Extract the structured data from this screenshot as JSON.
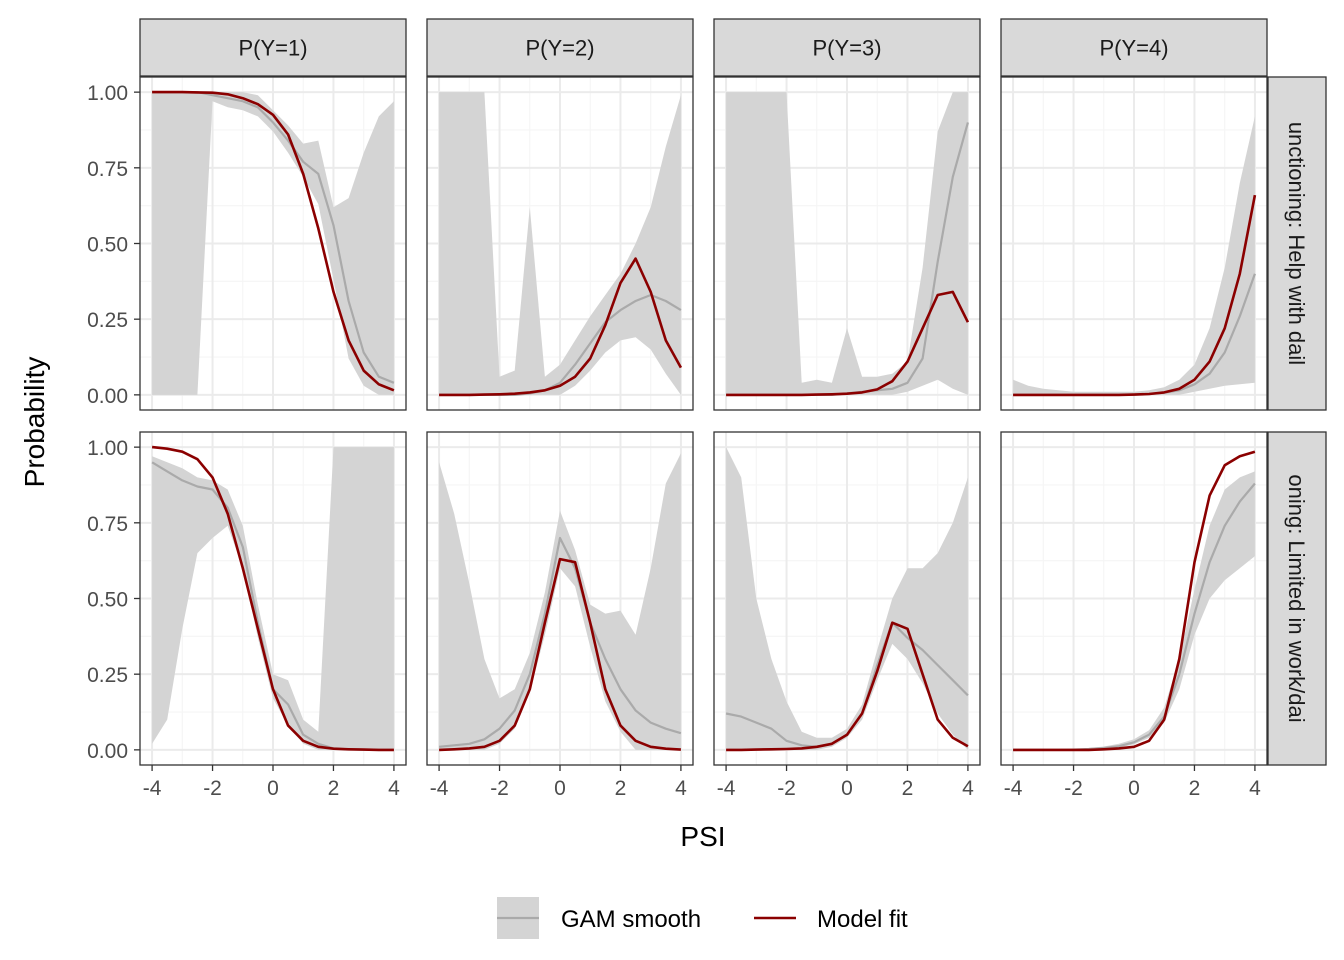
{
  "chart_data": {
    "type": "line",
    "xlabel": "PSI",
    "ylabel": "Probability",
    "xlim": [
      -4.4,
      4.4
    ],
    "ylim": [
      -0.05,
      1.05
    ],
    "x_ticks": [
      -4,
      -2,
      0,
      2,
      4
    ],
    "x_tick_labels": [
      "-4",
      "-2",
      "0",
      "2",
      "4"
    ],
    "y_ticks": [
      0,
      0.25,
      0.5,
      0.75,
      1
    ],
    "y_tick_labels": [
      "0.00",
      "0.25",
      "0.50",
      "0.75",
      "1.00"
    ],
    "grid": true,
    "facet_cols": [
      "P(Y=1)",
      "P(Y=2)",
      "P(Y=3)",
      "P(Y=4)"
    ],
    "facet_rows": [
      "unctioning: Help with dail",
      "oning: Limited in work/dai"
    ],
    "legend": {
      "position": "bottom",
      "entries": [
        {
          "label": "GAM smooth",
          "kind": "band-line",
          "color": "#aaaaaa",
          "fill": "#d4d4d4"
        },
        {
          "label": "Model fit",
          "kind": "line",
          "color": "#8b0000"
        }
      ]
    },
    "x": [
      -4,
      -3.5,
      -3,
      -2.5,
      -2,
      -1.5,
      -1,
      -0.5,
      0,
      0.5,
      1,
      1.5,
      2,
      2.5,
      3,
      3.5,
      4
    ],
    "panels": [
      {
        "row": 0,
        "col": 0,
        "model": [
          1.0,
          1.0,
          1.0,
          0.999,
          0.998,
          0.993,
          0.98,
          0.96,
          0.925,
          0.86,
          0.73,
          0.55,
          0.34,
          0.18,
          0.08,
          0.035,
          0.015
        ],
        "gam": [
          1.0,
          1.0,
          1.0,
          1.0,
          0.99,
          0.98,
          0.97,
          0.95,
          0.9,
          0.84,
          0.77,
          0.73,
          0.56,
          0.31,
          0.14,
          0.06,
          0.04
        ],
        "lower": [
          0.0,
          0.0,
          0.0,
          0.0,
          0.97,
          0.95,
          0.94,
          0.92,
          0.87,
          0.8,
          0.72,
          0.63,
          0.38,
          0.12,
          0.03,
          0.0,
          0.0
        ],
        "upper": [
          1.0,
          1.0,
          1.0,
          1.0,
          1.0,
          1.0,
          1.0,
          0.99,
          0.94,
          0.89,
          0.83,
          0.84,
          0.62,
          0.65,
          0.8,
          0.92,
          0.97
        ]
      },
      {
        "row": 0,
        "col": 1,
        "model": [
          0.0,
          0.0,
          0.0,
          0.001,
          0.002,
          0.004,
          0.008,
          0.015,
          0.03,
          0.06,
          0.12,
          0.23,
          0.37,
          0.45,
          0.34,
          0.18,
          0.09
        ],
        "gam": [
          0.0,
          0.0,
          0.0,
          0.0,
          0.0,
          0.0,
          0.005,
          0.015,
          0.04,
          0.1,
          0.17,
          0.24,
          0.28,
          0.31,
          0.33,
          0.31,
          0.28
        ],
        "lower": [
          0.0,
          0.0,
          0.0,
          0.0,
          0.0,
          0.0,
          0.0,
          0.0,
          0.0,
          0.03,
          0.08,
          0.14,
          0.18,
          0.19,
          0.15,
          0.07,
          0.0
        ],
        "upper": [
          1.0,
          1.0,
          1.0,
          1.0,
          0.06,
          0.08,
          0.62,
          0.06,
          0.1,
          0.18,
          0.26,
          0.33,
          0.4,
          0.5,
          0.62,
          0.82,
          0.99
        ]
      },
      {
        "row": 0,
        "col": 2,
        "model": [
          0.0,
          0.0,
          0.0,
          0.0,
          0.0,
          0.0,
          0.001,
          0.002,
          0.004,
          0.008,
          0.018,
          0.045,
          0.11,
          0.22,
          0.33,
          0.34,
          0.24
        ],
        "gam": [
          0.0,
          0.0,
          0.0,
          0.0,
          0.0,
          0.0,
          0.0,
          0.0,
          0.005,
          0.01,
          0.015,
          0.02,
          0.04,
          0.12,
          0.44,
          0.72,
          0.9
        ],
        "lower": [
          0.0,
          0.0,
          0.0,
          0.0,
          0.0,
          0.0,
          0.0,
          0.0,
          0.0,
          0.0,
          0.0,
          0.0,
          0.01,
          0.03,
          0.05,
          0.02,
          0.0
        ],
        "upper": [
          1.0,
          1.0,
          1.0,
          1.0,
          1.0,
          0.04,
          0.05,
          0.04,
          0.22,
          0.06,
          0.06,
          0.07,
          0.11,
          0.42,
          0.87,
          1.0,
          1.0
        ]
      },
      {
        "row": 0,
        "col": 3,
        "model": [
          0.0,
          0.0,
          0.0,
          0.0,
          0.0,
          0.0,
          0.0,
          0.0,
          0.001,
          0.003,
          0.008,
          0.02,
          0.05,
          0.11,
          0.22,
          0.4,
          0.66
        ],
        "gam": [
          0.0,
          0.0,
          0.0,
          0.0,
          0.0,
          0.0,
          0.0,
          0.0,
          0.001,
          0.003,
          0.007,
          0.015,
          0.035,
          0.07,
          0.14,
          0.26,
          0.4
        ],
        "lower": [
          0.0,
          0.0,
          0.0,
          0.0,
          0.0,
          0.0,
          0.0,
          0.0,
          0.0,
          0.0,
          0.0,
          0.0,
          0.01,
          0.02,
          0.03,
          0.035,
          0.04
        ],
        "upper": [
          0.05,
          0.03,
          0.02,
          0.015,
          0.01,
          0.01,
          0.01,
          0.01,
          0.01,
          0.015,
          0.025,
          0.05,
          0.1,
          0.22,
          0.42,
          0.7,
          0.92
        ]
      },
      {
        "row": 1,
        "col": 0,
        "model": [
          1.0,
          0.995,
          0.985,
          0.96,
          0.9,
          0.78,
          0.6,
          0.4,
          0.2,
          0.08,
          0.03,
          0.01,
          0.004,
          0.002,
          0.001,
          0.0,
          0.0
        ],
        "gam": [
          0.95,
          0.92,
          0.89,
          0.87,
          0.86,
          0.8,
          0.67,
          0.42,
          0.2,
          0.15,
          0.05,
          0.02,
          0.005,
          0.002,
          0.001,
          0.0,
          0.0
        ],
        "lower": [
          0.02,
          0.1,
          0.4,
          0.65,
          0.7,
          0.74,
          0.6,
          0.37,
          0.17,
          0.08,
          0.02,
          0.0,
          0.0,
          0.0,
          0.0,
          0.0,
          0.0
        ],
        "upper": [
          0.97,
          0.95,
          0.93,
          0.9,
          0.89,
          0.86,
          0.74,
          0.48,
          0.25,
          0.23,
          0.1,
          0.06,
          1.0,
          1.0,
          1.0,
          1.0,
          1.0
        ]
      },
      {
        "row": 1,
        "col": 1,
        "model": [
          0.0,
          0.002,
          0.005,
          0.01,
          0.03,
          0.08,
          0.2,
          0.42,
          0.63,
          0.62,
          0.42,
          0.2,
          0.08,
          0.03,
          0.01,
          0.004,
          0.001
        ],
        "gam": [
          0.01,
          0.015,
          0.02,
          0.035,
          0.07,
          0.13,
          0.25,
          0.45,
          0.7,
          0.6,
          0.42,
          0.3,
          0.2,
          0.13,
          0.09,
          0.07,
          0.055
        ],
        "lower": [
          0.0,
          0.0,
          0.0,
          0.0,
          0.02,
          0.07,
          0.19,
          0.38,
          0.6,
          0.54,
          0.34,
          0.16,
          0.06,
          0.0,
          0.0,
          0.0,
          0.0
        ],
        "upper": [
          0.95,
          0.78,
          0.55,
          0.3,
          0.17,
          0.2,
          0.32,
          0.52,
          0.79,
          0.66,
          0.48,
          0.45,
          0.46,
          0.38,
          0.6,
          0.88,
          0.98
        ]
      },
      {
        "row": 1,
        "col": 2,
        "model": [
          0.0,
          0.0,
          0.001,
          0.002,
          0.003,
          0.005,
          0.01,
          0.02,
          0.05,
          0.12,
          0.26,
          0.42,
          0.4,
          0.25,
          0.1,
          0.04,
          0.012
        ],
        "gam": [
          0.12,
          0.11,
          0.09,
          0.07,
          0.03,
          0.015,
          0.01,
          0.02,
          0.05,
          0.12,
          0.28,
          0.42,
          0.37,
          0.33,
          0.28,
          0.23,
          0.18
        ],
        "lower": [
          0.0,
          0.0,
          0.0,
          0.0,
          0.0,
          0.0,
          0.0,
          0.01,
          0.04,
          0.1,
          0.23,
          0.35,
          0.3,
          0.22,
          0.12,
          0.05,
          0.0
        ],
        "upper": [
          1.0,
          0.9,
          0.5,
          0.3,
          0.16,
          0.06,
          0.04,
          0.04,
          0.07,
          0.15,
          0.33,
          0.5,
          0.6,
          0.6,
          0.65,
          0.75,
          0.9
        ]
      },
      {
        "row": 1,
        "col": 3,
        "model": [
          0.0,
          0.0,
          0.0,
          0.0,
          0.0,
          0.0,
          0.002,
          0.005,
          0.01,
          0.03,
          0.1,
          0.3,
          0.62,
          0.84,
          0.94,
          0.97,
          0.985
        ],
        "gam": [
          0.0,
          0.0,
          0.0,
          0.0,
          0.001,
          0.003,
          0.006,
          0.012,
          0.025,
          0.05,
          0.11,
          0.25,
          0.45,
          0.62,
          0.74,
          0.82,
          0.88
        ],
        "lower": [
          0.0,
          0.0,
          0.0,
          0.0,
          0.0,
          0.0,
          0.002,
          0.007,
          0.018,
          0.04,
          0.09,
          0.2,
          0.38,
          0.5,
          0.56,
          0.6,
          0.64
        ],
        "upper": [
          0.0,
          0.0,
          0.0,
          0.0,
          0.002,
          0.006,
          0.011,
          0.02,
          0.035,
          0.065,
          0.14,
          0.3,
          0.53,
          0.74,
          0.86,
          0.9,
          0.92
        ]
      }
    ]
  },
  "colors": {
    "band": "#d4d4d4",
    "gam_line": "#aaaaaa",
    "model_line": "#8b0000",
    "grid_major": "#ebebeb",
    "grid_minor": "#f5f5f5",
    "panel_border": "#333333",
    "strip_fill": "#d9d9d9"
  }
}
